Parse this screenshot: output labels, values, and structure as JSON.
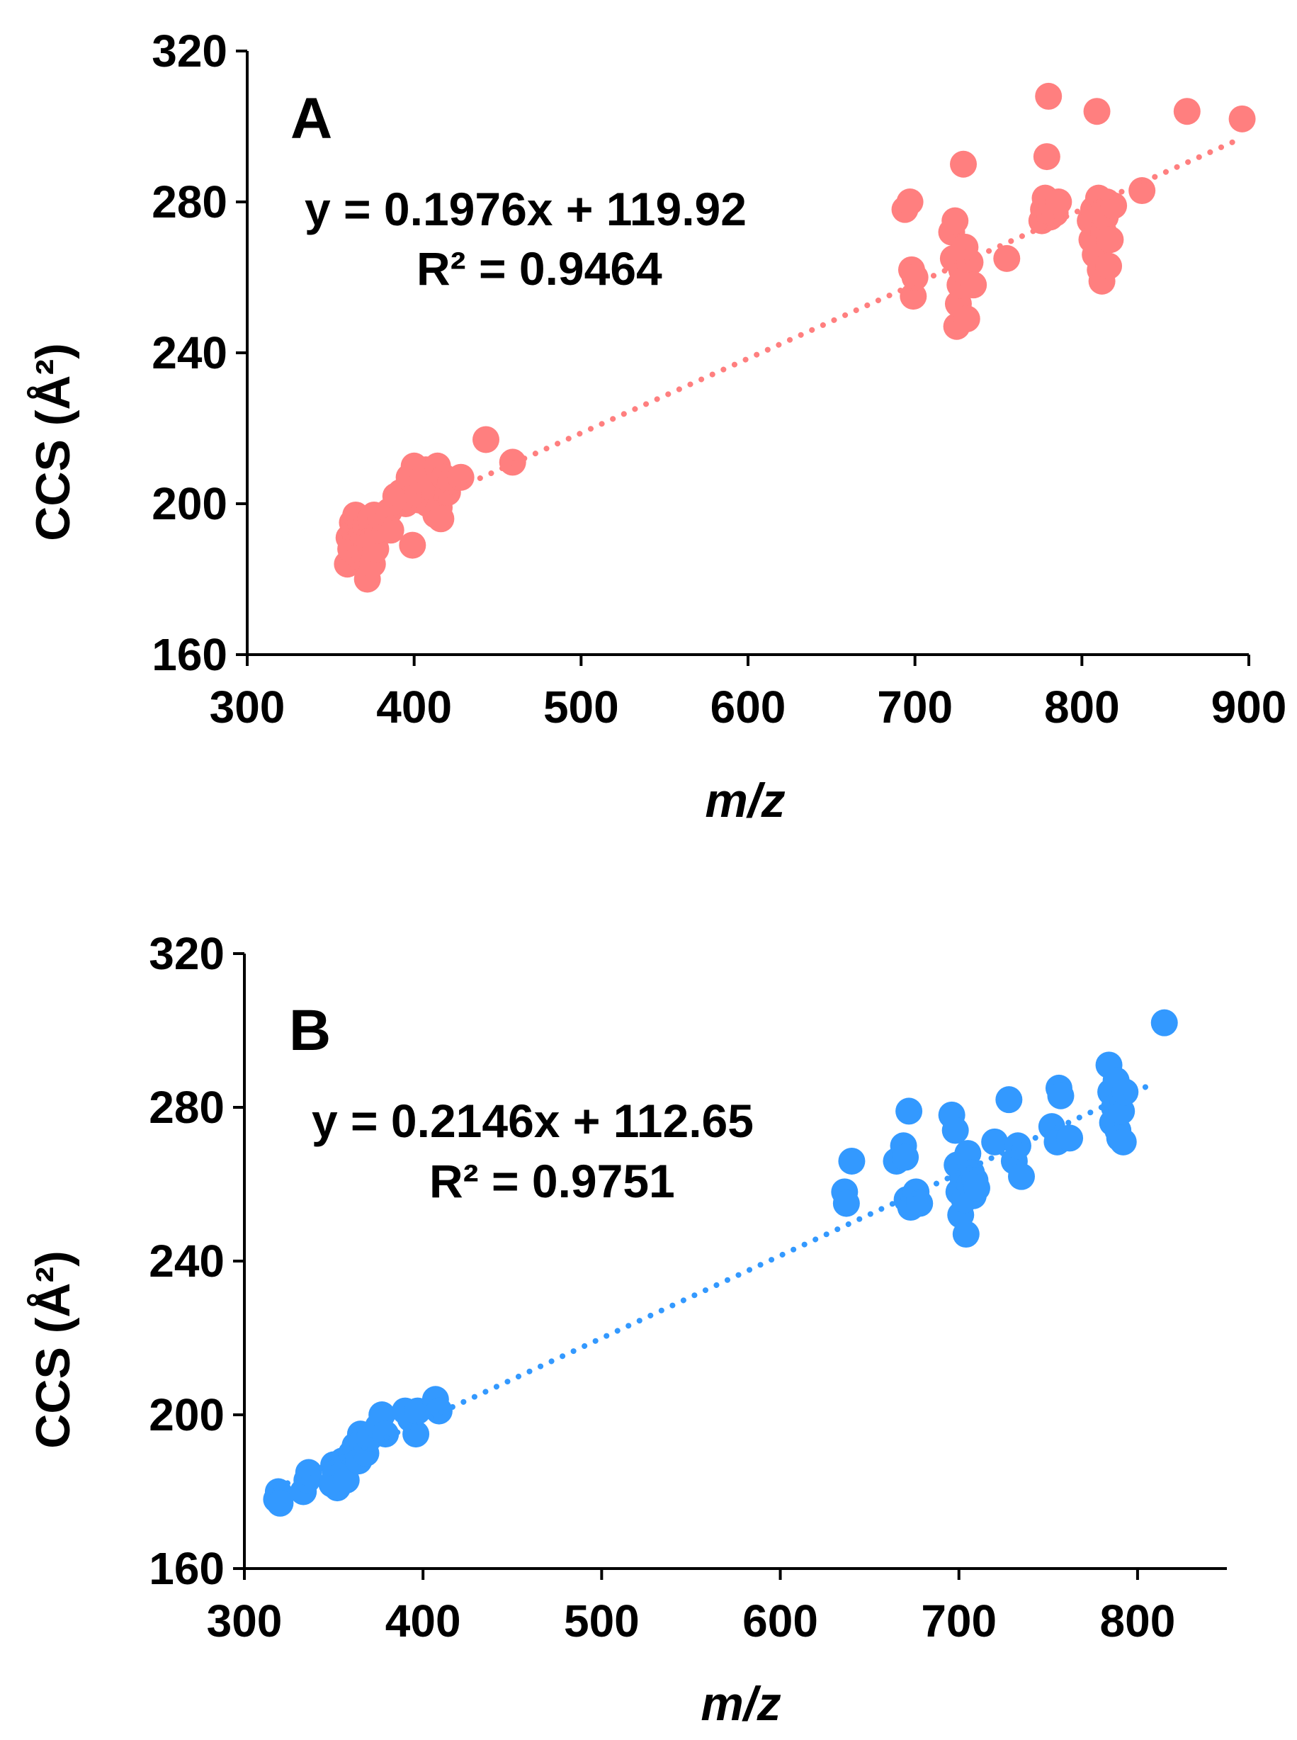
{
  "colors": {
    "panelA": "#ff7f7f",
    "panelB": "#3399ff",
    "axis": "#000000"
  },
  "chart_data": [
    {
      "type": "scatter",
      "panel_label": "A",
      "xlabel": "m/z",
      "ylabel": "CCS (Å²)",
      "xlim": [
        300,
        900
      ],
      "ylim": [
        160,
        320
      ],
      "xticks": [
        "300",
        "400",
        "500",
        "600",
        "700",
        "800",
        "900"
      ],
      "yticks": [
        "160",
        "200",
        "240",
        "280",
        "320"
      ],
      "trendline": {
        "style": "dotted",
        "slope": 0.1976,
        "intercept": 119.92,
        "x_range": [
          360,
          896
        ]
      },
      "equation": "y = 0.1976x + 119.92",
      "r2": "R² = 0.9464",
      "points": [
        [
          360,
          184
        ],
        [
          361,
          191
        ],
        [
          362,
          188
        ],
        [
          363,
          195
        ],
        [
          364,
          193
        ],
        [
          365,
          197
        ],
        [
          366,
          190
        ],
        [
          367,
          186
        ],
        [
          368,
          195
        ],
        [
          369,
          192
        ],
        [
          370,
          187
        ],
        [
          371,
          194
        ],
        [
          372,
          180
        ],
        [
          373,
          190
        ],
        [
          374,
          196
        ],
        [
          375,
          184
        ],
        [
          376,
          197
        ],
        [
          377,
          188
        ],
        [
          378,
          193
        ],
        [
          380,
          196
        ],
        [
          382,
          194
        ],
        [
          385,
          198
        ],
        [
          386,
          193
        ],
        [
          389,
          202
        ],
        [
          392,
          203
        ],
        [
          395,
          200
        ],
        [
          397,
          207
        ],
        [
          399,
          189
        ],
        [
          400,
          210
        ],
        [
          402,
          204
        ],
        [
          403,
          201
        ],
        [
          405,
          206
        ],
        [
          407,
          209
        ],
        [
          408,
          200
        ],
        [
          410,
          205
        ],
        [
          412,
          202
        ],
        [
          413,
          197
        ],
        [
          414,
          210
        ],
        [
          415,
          199
        ],
        [
          416,
          196
        ],
        [
          418,
          207
        ],
        [
          420,
          203
        ],
        [
          422,
          206
        ],
        [
          428,
          207
        ],
        [
          443,
          217
        ],
        [
          459,
          211
        ],
        [
          694,
          278
        ],
        [
          697,
          280
        ],
        [
          698,
          262
        ],
        [
          699,
          255
        ],
        [
          700,
          260
        ],
        [
          722,
          272
        ],
        [
          723,
          265
        ],
        [
          724,
          275
        ],
        [
          725,
          247
        ],
        [
          726,
          253
        ],
        [
          727,
          258
        ],
        [
          728,
          262
        ],
        [
          729,
          290
        ],
        [
          730,
          268
        ],
        [
          731,
          249
        ],
        [
          733,
          264
        ],
        [
          735,
          258
        ],
        [
          755,
          265
        ],
        [
          776,
          275
        ],
        [
          777,
          278
        ],
        [
          778,
          281
        ],
        [
          779,
          292
        ],
        [
          780,
          308
        ],
        [
          781,
          276
        ],
        [
          782,
          279
        ],
        [
          784,
          277
        ],
        [
          786,
          280
        ],
        [
          805,
          275
        ],
        [
          806,
          270
        ],
        [
          807,
          278
        ],
        [
          808,
          266
        ],
        [
          809,
          304
        ],
        [
          810,
          281
        ],
        [
          811,
          262
        ],
        [
          812,
          259
        ],
        [
          813,
          272
        ],
        [
          814,
          276
        ],
        [
          815,
          280
        ],
        [
          816,
          263
        ],
        [
          817,
          270
        ],
        [
          819,
          279
        ],
        [
          836,
          283
        ],
        [
          863,
          304
        ],
        [
          896,
          302
        ]
      ]
    },
    {
      "type": "scatter",
      "panel_label": "B",
      "xlabel": "m/z",
      "ylabel": "CCS (Å²)",
      "xlim": [
        300,
        850
      ],
      "ylim": [
        160,
        320
      ],
      "xticks": [
        "300",
        "400",
        "500",
        "600",
        "700",
        "800"
      ],
      "yticks": [
        "160",
        "200",
        "240",
        "280",
        "320"
      ],
      "trendline": {
        "style": "dotted",
        "slope": 0.2146,
        "intercept": 112.65,
        "x_range": [
          318,
          808
        ]
      },
      "equation": "y = 0.2146x + 112.65",
      "r2": "R² = 0.9751",
      "points": [
        [
          318,
          178
        ],
        [
          319,
          180
        ],
        [
          320,
          177
        ],
        [
          333,
          180
        ],
        [
          335,
          183
        ],
        [
          336,
          185
        ],
        [
          349,
          182
        ],
        [
          350,
          187
        ],
        [
          351,
          185
        ],
        [
          352,
          181
        ],
        [
          355,
          188
        ],
        [
          357,
          183
        ],
        [
          360,
          190
        ],
        [
          362,
          192
        ],
        [
          364,
          188
        ],
        [
          365,
          195
        ],
        [
          366,
          193
        ],
        [
          368,
          190
        ],
        [
          370,
          194
        ],
        [
          375,
          197
        ],
        [
          377,
          200
        ],
        [
          379,
          195
        ],
        [
          390,
          201
        ],
        [
          393,
          199
        ],
        [
          396,
          195
        ],
        [
          397,
          201
        ],
        [
          407,
          204
        ],
        [
          409,
          201
        ],
        [
          636,
          258
        ],
        [
          637,
          255
        ],
        [
          640,
          266
        ],
        [
          665,
          266
        ],
        [
          669,
          270
        ],
        [
          670,
          267
        ],
        [
          671,
          256
        ],
        [
          672,
          279
        ],
        [
          673,
          254
        ],
        [
          676,
          258
        ],
        [
          678,
          255
        ],
        [
          696,
          278
        ],
        [
          698,
          274
        ],
        [
          699,
          265
        ],
        [
          700,
          258
        ],
        [
          701,
          252
        ],
        [
          702,
          262
        ],
        [
          703,
          256
        ],
        [
          704,
          247
        ],
        [
          705,
          268
        ],
        [
          706,
          260
        ],
        [
          707,
          263
        ],
        [
          708,
          257
        ],
        [
          709,
          261
        ],
        [
          710,
          259
        ],
        [
          720,
          271
        ],
        [
          728,
          282
        ],
        [
          731,
          266
        ],
        [
          733,
          270
        ],
        [
          735,
          262
        ],
        [
          752,
          275
        ],
        [
          755,
          271
        ],
        [
          756,
          285
        ],
        [
          757,
          283
        ],
        [
          762,
          272
        ],
        [
          784,
          291
        ],
        [
          785,
          284
        ],
        [
          786,
          276
        ],
        [
          787,
          280
        ],
        [
          788,
          287
        ],
        [
          789,
          274
        ],
        [
          790,
          272
        ],
        [
          791,
          279
        ],
        [
          792,
          271
        ],
        [
          793,
          284
        ],
        [
          815,
          302
        ]
      ]
    }
  ]
}
